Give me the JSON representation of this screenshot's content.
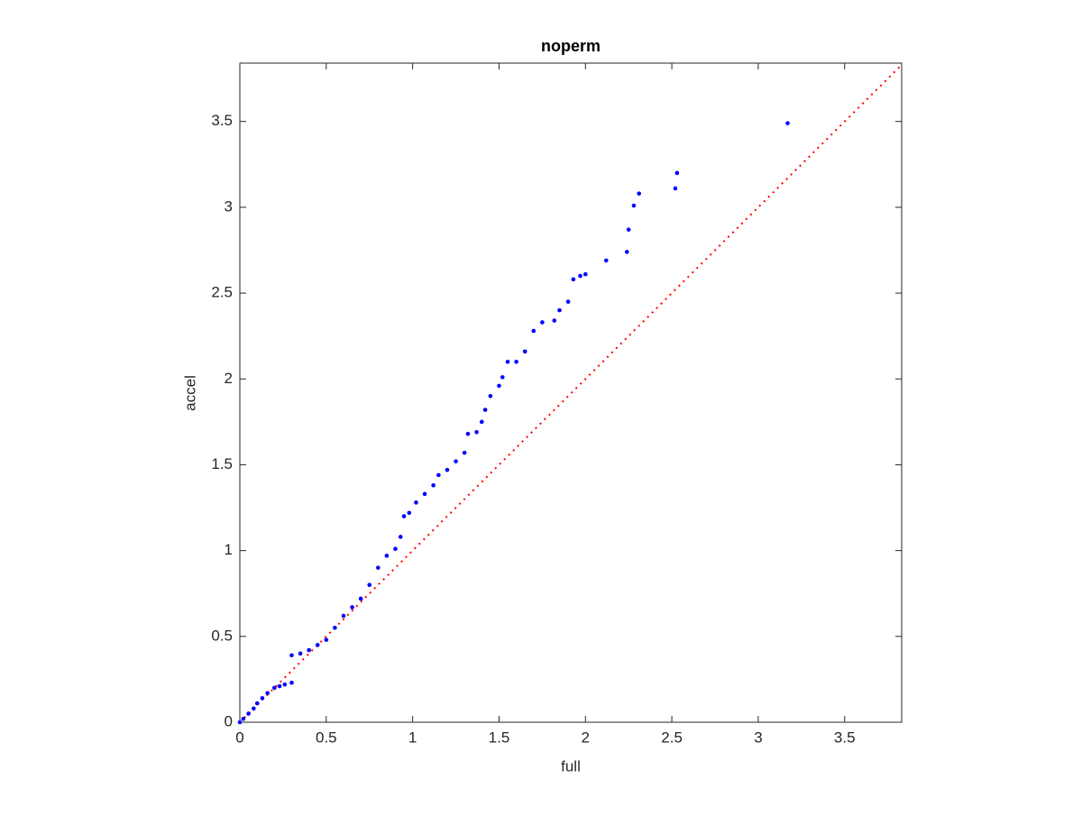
{
  "chart_data": {
    "type": "scatter",
    "title": "noperm",
    "x_label": "full",
    "y_label": "accel",
    "xlim": [
      0,
      3.83
    ],
    "ylim": [
      0,
      3.84
    ],
    "xticks": [
      0,
      0.5,
      1,
      1.5,
      2,
      2.5,
      3,
      3.5
    ],
    "yticks": [
      0,
      0.5,
      1,
      1.5,
      2,
      2.5,
      3,
      3.5
    ],
    "reference_line": {
      "x": [
        0,
        3.83
      ],
      "y": [
        0,
        3.83
      ],
      "color": "#ff0000"
    },
    "series": [
      {
        "color": "#0000ff",
        "x": [
          0,
          0.02,
          0.05,
          0.08,
          0.1,
          0.13,
          0.16,
          0.2,
          0.23,
          0.26,
          0.3,
          0.3,
          0.35,
          0.4,
          0.45,
          0.5,
          0.55,
          0.6,
          0.65,
          0.7,
          0.75,
          0.8,
          0.85,
          0.9,
          0.93,
          0.95,
          0.98,
          1.02,
          1.07,
          1.12,
          1.15,
          1.2,
          1.25,
          1.3,
          1.32,
          1.37,
          1.4,
          1.42,
          1.45,
          1.5,
          1.52,
          1.55,
          1.6,
          1.65,
          1.7,
          1.75,
          1.82,
          1.85,
          1.9,
          1.93,
          1.97,
          2.0,
          2.12,
          2.24,
          2.25,
          2.28,
          2.31,
          2.52,
          2.53,
          3.17
        ],
        "values": [
          0,
          0.02,
          0.05,
          0.08,
          0.11,
          0.14,
          0.17,
          0.2,
          0.21,
          0.22,
          0.23,
          0.39,
          0.4,
          0.42,
          0.45,
          0.48,
          0.55,
          0.62,
          0.67,
          0.72,
          0.8,
          0.9,
          0.97,
          1.01,
          1.08,
          1.2,
          1.22,
          1.28,
          1.33,
          1.38,
          1.44,
          1.47,
          1.52,
          1.57,
          1.68,
          1.69,
          1.75,
          1.82,
          1.9,
          1.96,
          2.01,
          2.1,
          2.1,
          2.16,
          2.28,
          2.33,
          2.34,
          2.4,
          2.45,
          2.58,
          2.6,
          2.61,
          2.69,
          2.74,
          2.87,
          3.01,
          3.08,
          3.11,
          3.2,
          3.49
        ]
      }
    ]
  }
}
